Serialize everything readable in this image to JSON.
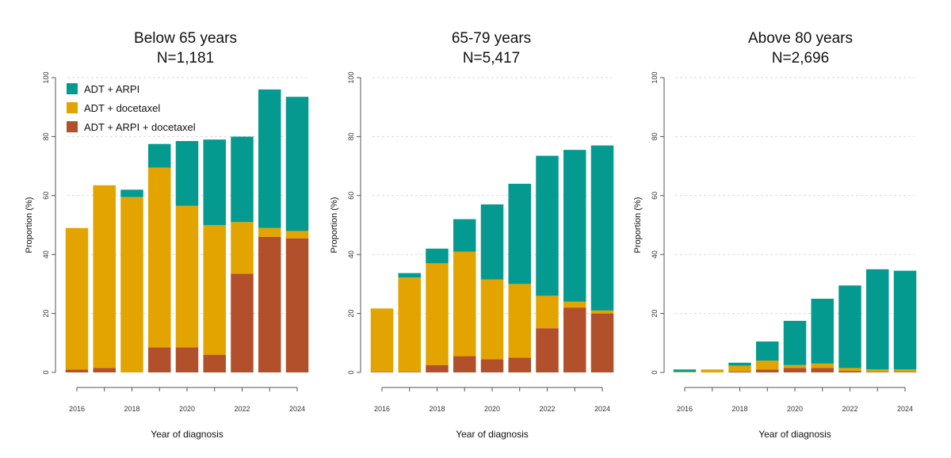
{
  "colors": {
    "adt_arpi": "#059a8f",
    "adt_docetaxel": "#e3a400",
    "adt_arpi_docetaxel": "#b1502a",
    "grid": "#d9d9d9",
    "axis": "#555555"
  },
  "legend": {
    "position": "top-left",
    "entries": [
      "ADT + ARPI",
      "ADT + docetaxel",
      "ADT + ARPI + docetaxel"
    ]
  },
  "chart_data": [
    {
      "type": "bar",
      "stacked": true,
      "title": "Below 65 years",
      "subtitle": "N=1,181",
      "xlabel": "Year of diagnosis",
      "ylabel": "Proportion (%)",
      "ylim": [
        0,
        100
      ],
      "yticks": [
        "0",
        "20",
        "40",
        "60",
        "80",
        "100"
      ],
      "categories": [
        2016,
        2017,
        2018,
        2019,
        2020,
        2021,
        2022,
        2023,
        2024
      ],
      "xtick_labels": [
        "2016",
        "2018",
        "2020",
        "2022",
        "2024"
      ],
      "grid": true,
      "series": [
        {
          "name": "ADT + ARPI + docetaxel",
          "values": [
            1.0,
            1.5,
            0.0,
            8.5,
            8.5,
            6.0,
            33.5,
            46.0,
            45.5
          ]
        },
        {
          "name": "ADT + docetaxel",
          "values": [
            48.0,
            62.0,
            59.5,
            61.0,
            48.0,
            44.0,
            17.5,
            3.0,
            2.5
          ]
        },
        {
          "name": "ADT + ARPI",
          "values": [
            0.0,
            0.0,
            2.5,
            8.0,
            22.0,
            29.0,
            29.0,
            47.0,
            45.5
          ]
        }
      ]
    },
    {
      "type": "bar",
      "stacked": true,
      "title": "65-79 years",
      "subtitle": "N=5,417",
      "xlabel": "Year of diagnosis",
      "ylabel": "Proportion (%)",
      "ylim": [
        0,
        100
      ],
      "yticks": [
        "0",
        "20",
        "40",
        "60",
        "80",
        "100"
      ],
      "categories": [
        2016,
        2017,
        2018,
        2019,
        2020,
        2021,
        2022,
        2023,
        2024
      ],
      "xtick_labels": [
        "2016",
        "2018",
        "2020",
        "2022",
        "2024"
      ],
      "grid": true,
      "series": [
        {
          "name": "ADT + ARPI + docetaxel",
          "values": [
            0.2,
            0.2,
            2.5,
            5.5,
            4.5,
            5.0,
            15.0,
            22.0,
            20.0
          ]
        },
        {
          "name": "ADT + docetaxel",
          "values": [
            21.5,
            32.0,
            34.5,
            35.5,
            27.0,
            25.0,
            11.0,
            2.0,
            1.0
          ]
        },
        {
          "name": "ADT + ARPI",
          "values": [
            0.0,
            1.5,
            5.0,
            11.0,
            25.5,
            34.0,
            47.5,
            51.5,
            56.0
          ]
        }
      ]
    },
    {
      "type": "bar",
      "stacked": true,
      "title": "Above 80 years",
      "subtitle": "N=2,696",
      "xlabel": "Year of diagnosis",
      "ylabel": "Proportion (%)",
      "ylim": [
        0,
        100
      ],
      "yticks": [
        "0",
        "20",
        "40",
        "60",
        "80",
        "100"
      ],
      "categories": [
        2016,
        2017,
        2018,
        2019,
        2020,
        2021,
        2022,
        2023,
        2024
      ],
      "xtick_labels": [
        "2016",
        "2018",
        "2020",
        "2022",
        "2024"
      ],
      "grid": true,
      "series": [
        {
          "name": "ADT + ARPI + docetaxel",
          "values": [
            0.0,
            0.0,
            0.3,
            1.0,
            1.5,
            1.5,
            0.5,
            0.2,
            0.2
          ]
        },
        {
          "name": "ADT + docetaxel",
          "values": [
            0.2,
            1.0,
            2.0,
            3.0,
            1.0,
            1.5,
            1.0,
            0.8,
            0.8
          ]
        },
        {
          "name": "ADT + ARPI",
          "values": [
            0.8,
            0.0,
            1.0,
            6.5,
            15.0,
            22.0,
            28.0,
            34.0,
            33.5
          ]
        }
      ]
    }
  ]
}
